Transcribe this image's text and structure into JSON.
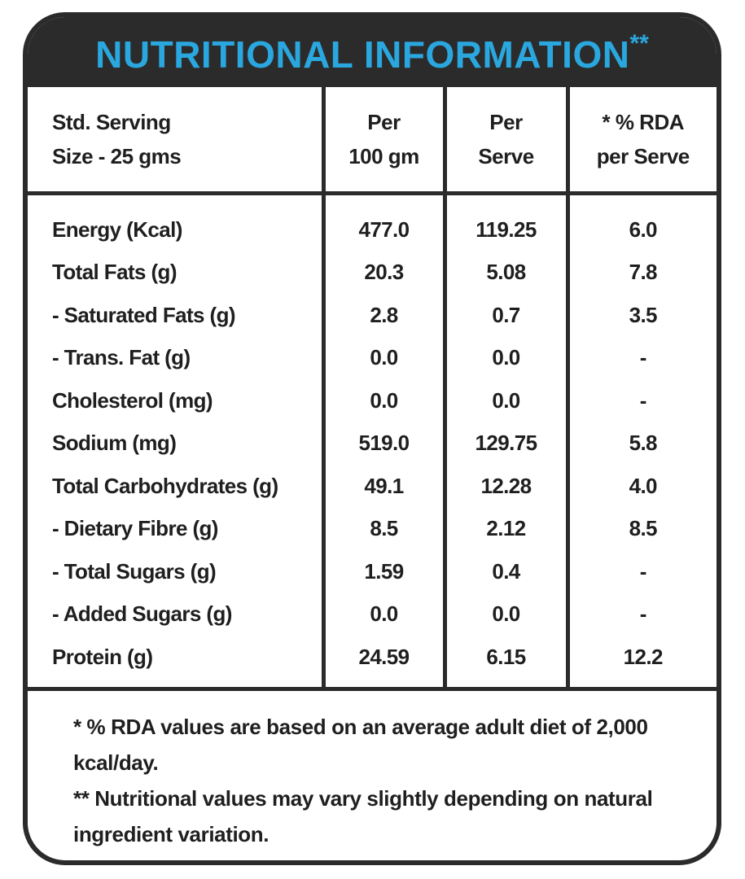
{
  "header": {
    "title": "NUTRITIONAL INFORMATION",
    "mark": "**"
  },
  "table": {
    "columns": [
      [
        "Std. Serving",
        "Size - 25 gms"
      ],
      [
        "Per",
        "100 gm"
      ],
      [
        "Per",
        "Serve"
      ],
      [
        "* % RDA",
        "per Serve"
      ]
    ],
    "rows": [
      [
        "Energy (Kcal)",
        "477.0",
        "119.25",
        "6.0"
      ],
      [
        "Total Fats (g)",
        "20.3",
        "5.08",
        "7.8"
      ],
      [
        "- Saturated Fats (g)",
        "2.8",
        "0.7",
        "3.5"
      ],
      [
        "- Trans. Fat (g)",
        "0.0",
        "0.0",
        "-"
      ],
      [
        "Cholesterol (mg)",
        "0.0",
        "0.0",
        "-"
      ],
      [
        "Sodium (mg)",
        "519.0",
        "129.75",
        "5.8"
      ],
      [
        "Total Carbohydrates (g)",
        "49.1",
        "12.28",
        "4.0"
      ],
      [
        "- Dietary Fibre (g)",
        "8.5",
        "2.12",
        "8.5"
      ],
      [
        "- Total Sugars (g)",
        "1.59",
        "0.4",
        "-"
      ],
      [
        "- Added Sugars (g)",
        "0.0",
        "0.0",
        "-"
      ],
      [
        "Protein (g)",
        "24.59",
        "6.15",
        "12.2"
      ]
    ]
  },
  "footnotes": [
    "* % RDA values are based on an average adult diet of 2,000 kcal/day.",
    "** Nutritional values may vary slightly depending on natural ingredient variation."
  ]
}
